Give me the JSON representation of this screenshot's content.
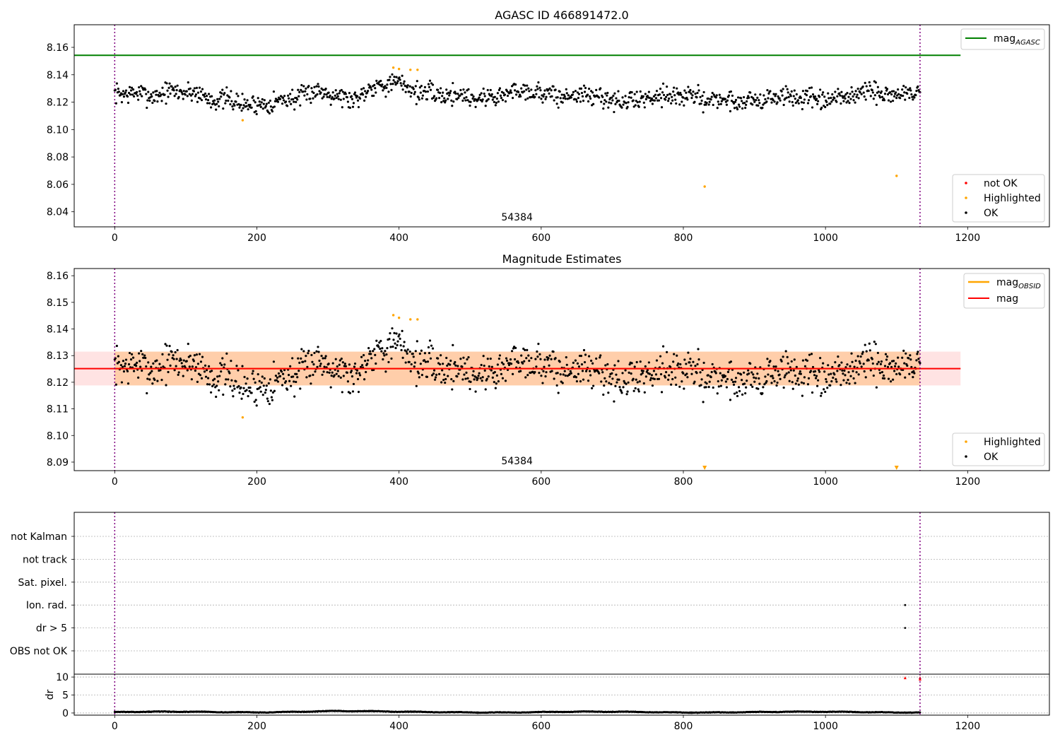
{
  "chart_data": [
    {
      "type": "scatter",
      "title": "AGASC ID 466891472.0",
      "xlabel": "",
      "ylabel": "",
      "xlim": [
        -57,
        1315
      ],
      "ylim": [
        8.029,
        8.1765
      ],
      "xticks": [
        0,
        200,
        400,
        600,
        800,
        1000,
        1200
      ],
      "yticks": [
        8.04,
        8.06,
        8.08,
        8.1,
        8.12,
        8.14,
        8.16
      ],
      "ytick_decimals": 2,
      "grid": false,
      "obsid_label": {
        "text": "54384",
        "x": 566
      },
      "obs_boundaries": [
        0,
        1133
      ],
      "lines": [
        {
          "name": "mag_AGASC",
          "label_base": "mag",
          "label_sub": "AGASC",
          "y": 8.1542,
          "x_range": [
            -57,
            1190
          ],
          "color": "#008000"
        }
      ],
      "series": [
        {
          "name": "OK",
          "color": "#000000",
          "generated": true,
          "count": 1130,
          "x_range": [
            0,
            1133
          ],
          "base": 8.1245,
          "wave": [
            [
              0.0026,
              260
            ],
            [
              0.0017,
              95
            ],
            [
              0.0009,
              41
            ]
          ],
          "bumps": [
            [
              405,
              55,
              0.0085
            ],
            [
              860,
              35,
              -0.0075
            ],
            [
              330,
              18,
              -0.005
            ],
            [
              195,
              22,
              -0.006
            ]
          ],
          "noise": 0.0052,
          "seed": 7
        },
        {
          "name": "Highlighted",
          "color": "#ffa500",
          "points": [
            [
              180,
              8.1068
            ],
            [
              392,
              8.1452
            ],
            [
              400,
              8.1442
            ],
            [
              416,
              8.1436
            ],
            [
              426,
              8.1436
            ],
            [
              830,
              8.0584
            ],
            [
              1100,
              8.0662
            ]
          ]
        },
        {
          "name": "not OK",
          "color": "#ff0000",
          "points": []
        }
      ],
      "legend": [
        {
          "position": "top-right",
          "entries": [
            "mag_AGASC"
          ]
        },
        {
          "position": "bottom-right",
          "entries": [
            "not OK",
            "Highlighted",
            "OK"
          ]
        }
      ]
    },
    {
      "type": "scatter",
      "title": "Magnitude Estimates",
      "xlabel": "",
      "ylabel": "",
      "xlim": [
        -57,
        1315
      ],
      "ylim": [
        8.0868,
        8.1627
      ],
      "xticks": [
        0,
        200,
        400,
        600,
        800,
        1000,
        1200
      ],
      "yticks": [
        8.09,
        8.1,
        8.11,
        8.12,
        8.13,
        8.14,
        8.15,
        8.16
      ],
      "ytick_decimals": 2,
      "grid": false,
      "obsid_label": {
        "text": "54384",
        "x": 566
      },
      "obs_boundaries": [
        0,
        1133
      ],
      "bands": [
        {
          "name": "mag_OBSID range",
          "x_range": [
            0,
            1133
          ],
          "y_range": [
            8.1188,
            8.1315
          ],
          "color": "#ffa500",
          "opacity": 0.25
        },
        {
          "name": "mag range",
          "x_range": [
            -57,
            1190
          ],
          "y_range": [
            8.1188,
            8.1315
          ],
          "color": "#ff0000",
          "opacity": 0.11
        }
      ],
      "lines": [
        {
          "name": "mag_OBSID",
          "label_base": "mag",
          "label_sub": "OBSID",
          "y": 8.1251,
          "x_range": [
            0,
            1133
          ],
          "color": "#ffa500"
        },
        {
          "name": "mag",
          "label_base": "mag",
          "label_sub": "",
          "y": 8.1251,
          "x_range": [
            -57,
            1190
          ],
          "color": "#ff0000"
        }
      ],
      "series": [
        {
          "name": "OK",
          "color": "#000000",
          "generated": true,
          "count": 1130,
          "x_range": [
            0,
            1133
          ],
          "base": 8.1245,
          "wave": [
            [
              0.0026,
              260
            ],
            [
              0.0017,
              95
            ],
            [
              0.0009,
              41
            ]
          ],
          "bumps": [
            [
              405,
              55,
              0.0085
            ],
            [
              860,
              35,
              -0.0075
            ],
            [
              330,
              18,
              -0.005
            ],
            [
              195,
              22,
              -0.006
            ]
          ],
          "noise": 0.0052,
          "seed": 7
        },
        {
          "name": "Highlighted",
          "color": "#ffa500",
          "points": [
            [
              180,
              8.1068
            ],
            [
              392,
              8.1452
            ],
            [
              400,
              8.1442
            ],
            [
              416,
              8.1436
            ],
            [
              426,
              8.1436
            ]
          ],
          "off_scale_low": [
            830,
            1100
          ]
        }
      ],
      "legend": [
        {
          "position": "top-right",
          "entries": [
            "mag_OBSID",
            "mag"
          ]
        },
        {
          "position": "bottom-right",
          "entries": [
            "Highlighted",
            "OK"
          ]
        }
      ]
    },
    {
      "type": "scatter",
      "title": "",
      "xlabel": "",
      "ylabel": "",
      "xlim": [
        -57,
        1315
      ],
      "categories": [
        "OBS not OK",
        "dr > 5",
        "Ion. rad.",
        "Sat. pixel.",
        "not track",
        "not Kalman"
      ],
      "grid": true,
      "obs_boundaries": [
        0,
        1133
      ],
      "series": [
        {
          "name": "Ion. rad.",
          "color": "#000000",
          "points": [
            [
              1112,
              "Ion. rad."
            ]
          ]
        },
        {
          "name": "dr > 5",
          "color": "#000000",
          "points": [
            [
              1112,
              "dr > 5"
            ]
          ]
        }
      ]
    },
    {
      "type": "scatter",
      "title": "",
      "xlabel": "",
      "ylabel": "dr",
      "xlim": [
        -57,
        1315
      ],
      "ylim": [
        -0.6,
        10.8
      ],
      "xticks": [
        0,
        200,
        400,
        600,
        800,
        1000,
        1200
      ],
      "yticks": [
        0,
        5,
        10
      ],
      "ytick_decimals": 0,
      "grid": true,
      "obs_boundaries": [
        0,
        1133
      ],
      "series": [
        {
          "name": "dr",
          "color": "#000000",
          "generated": true,
          "count": 1130,
          "x_range": [
            0,
            1133
          ],
          "base": 0.25,
          "wave": [
            [
              0.12,
              300
            ],
            [
              0.05,
              60
            ]
          ],
          "bumps": [
            [
              300,
              70,
              0.25
            ]
          ],
          "noise": 0.05,
          "seed": 13
        },
        {
          "name": "dr large",
          "color": "#ff0000",
          "points": [
            [
              1112,
              9.8
            ],
            [
              1133,
              9.8
            ],
            [
              1133,
              9.4
            ]
          ]
        }
      ]
    }
  ]
}
